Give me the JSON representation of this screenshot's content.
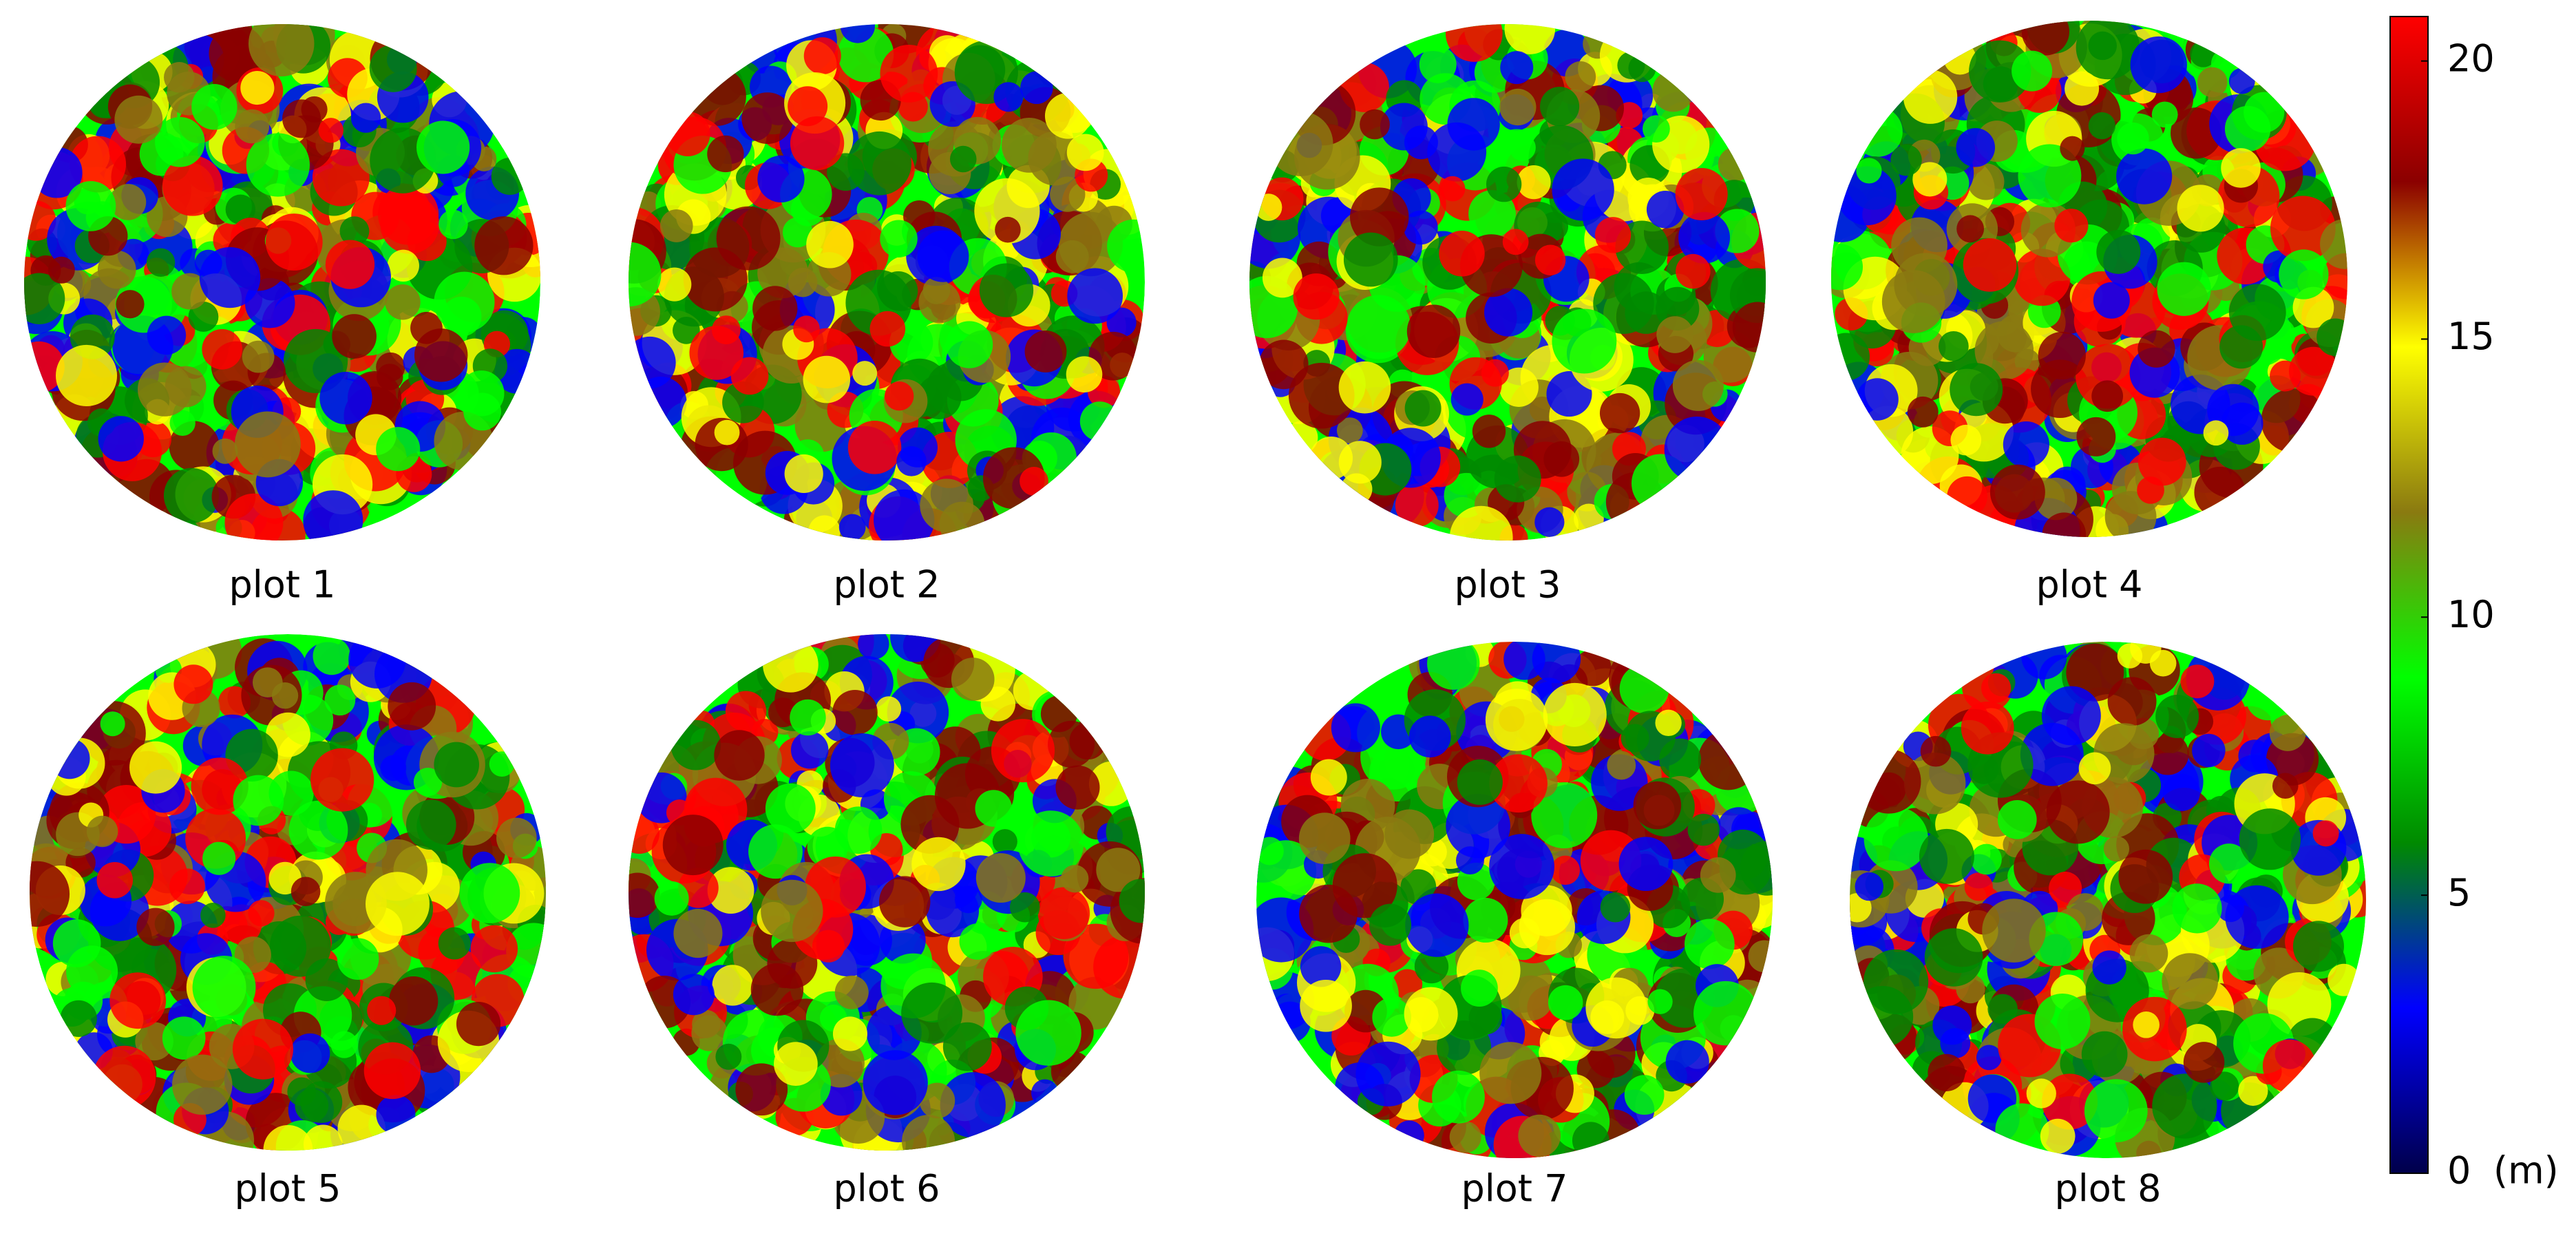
{
  "plots": [
    {
      "label": "plot 1"
    },
    {
      "label": "plot 2"
    },
    {
      "label": "plot 3"
    },
    {
      "label": "plot 4"
    },
    {
      "label": "plot 5"
    },
    {
      "label": "plot 6"
    },
    {
      "label": "plot 7"
    },
    {
      "label": "plot 8"
    }
  ],
  "colorbar": {
    "lim": [
      0,
      20.8
    ],
    "ticks": [
      0,
      5,
      10,
      15,
      20
    ],
    "unit": "(m)",
    "colors": [
      "#00004a",
      "#0000ff",
      "#008a00",
      "#00ff00",
      "#8a7a10",
      "#ffff00",
      "#8b0000",
      "#ff0000"
    ]
  }
}
